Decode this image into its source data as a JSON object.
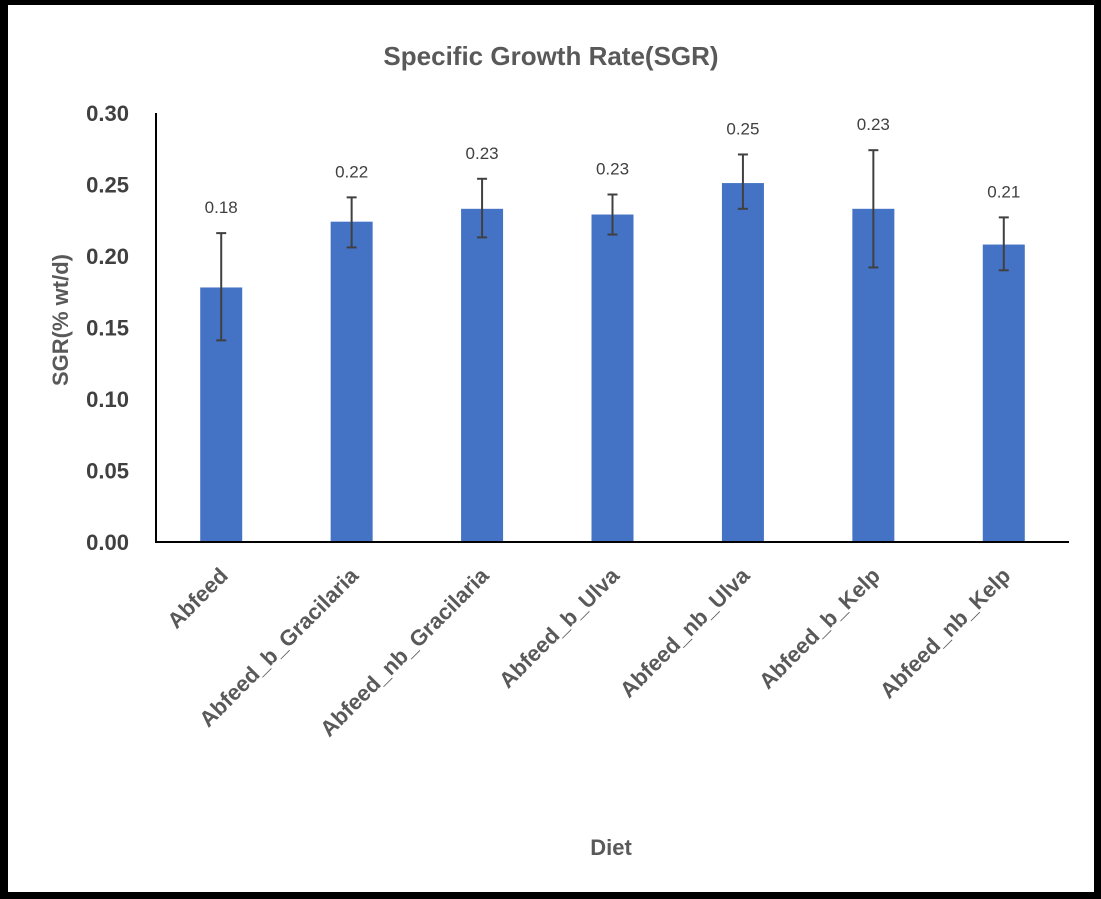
{
  "chart_data": {
    "type": "bar",
    "title": "Specific Growth Rate(SGR)",
    "xlabel": "Diet",
    "ylabel": "SGR(% wt/d)",
    "categories": [
      "Abfeed",
      "Abfeed_b_Gracilaria",
      "Abfeed_nb_Gracilaria",
      "Abfeed_b_Ulva",
      "Abfeed_nb_Ulva",
      "Abfeed_b_Kelp",
      "Abfeed_nb_Kelp"
    ],
    "values": [
      0.178,
      0.224,
      0.233,
      0.229,
      0.251,
      0.233,
      0.208
    ],
    "data_labels": [
      "0.18",
      "0.22",
      "0.23",
      "0.23",
      "0.25",
      "0.23",
      "0.21"
    ],
    "error_low": [
      0.141,
      0.206,
      0.213,
      0.215,
      0.233,
      0.192,
      0.19
    ],
    "error_high": [
      0.216,
      0.241,
      0.254,
      0.243,
      0.271,
      0.274,
      0.227
    ],
    "ylim": [
      0,
      0.3
    ],
    "yticks": [
      "0.00",
      "0.05",
      "0.10",
      "0.15",
      "0.20",
      "0.25",
      "0.30"
    ],
    "grid": false,
    "legend": "none",
    "bar_color": "#4472C4",
    "axis_color": "#000000"
  }
}
